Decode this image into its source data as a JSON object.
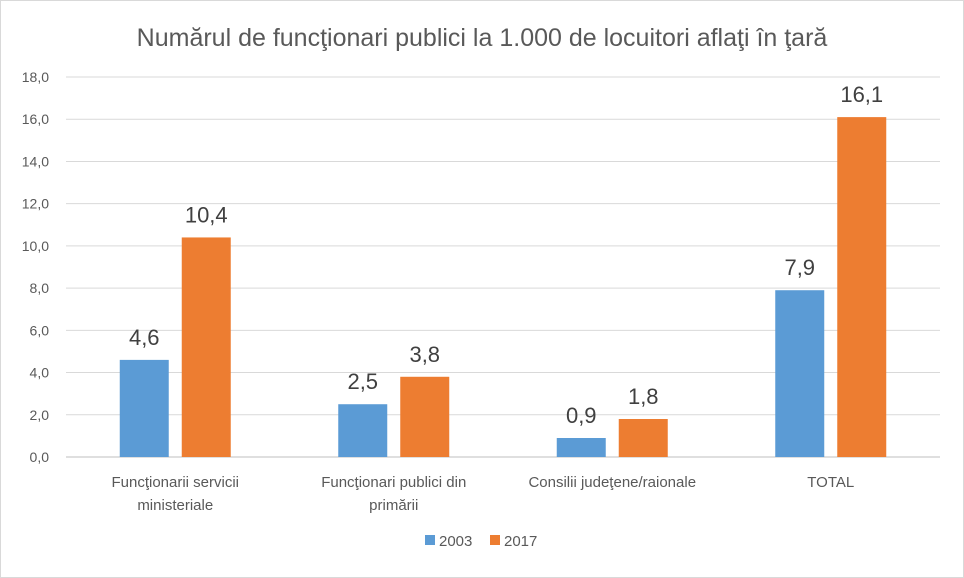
{
  "chart_data": {
    "type": "bar",
    "title": "Numărul de funcţionari publici la 1.000 de locuitori aflaţi în ţară",
    "categories": [
      [
        "Funcţionarii servicii",
        "ministeriale"
      ],
      [
        "Funcţionari publici din",
        "primării"
      ],
      [
        "Consilii judeţene/raionale"
      ],
      [
        "TOTAL"
      ]
    ],
    "series": [
      {
        "name": "2003",
        "color": "#5b9bd5",
        "values": [
          4.6,
          2.5,
          0.9,
          7.9
        ],
        "labels": [
          "4,6",
          "2,5",
          "0,9",
          "7,9"
        ]
      },
      {
        "name": "2017",
        "color": "#ed7d31",
        "values": [
          10.4,
          3.8,
          1.8,
          16.1
        ],
        "labels": [
          "10,4",
          "3,8",
          "1,8",
          "16,1"
        ]
      }
    ],
    "ylim": [
      0,
      18
    ],
    "yticks": [
      0,
      2,
      4,
      6,
      8,
      10,
      12,
      14,
      16,
      18
    ],
    "ytick_labels": [
      "0,0",
      "2,0",
      "4,0",
      "6,0",
      "8,0",
      "10,0",
      "12,0",
      "14,0",
      "16,0",
      "18,0"
    ],
    "grid": true,
    "legend": "bottom"
  }
}
